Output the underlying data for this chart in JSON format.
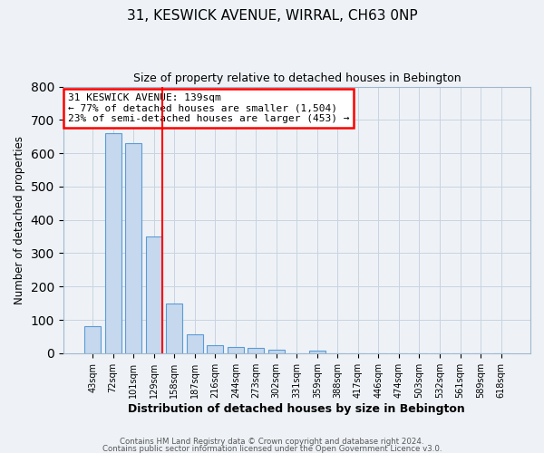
{
  "title": "31, KESWICK AVENUE, WIRRAL, CH63 0NP",
  "subtitle": "Size of property relative to detached houses in Bebington",
  "xlabel": "Distribution of detached houses by size in Bebington",
  "ylabel": "Number of detached properties",
  "bar_labels": [
    "43sqm",
    "72sqm",
    "101sqm",
    "129sqm",
    "158sqm",
    "187sqm",
    "216sqm",
    "244sqm",
    "273sqm",
    "302sqm",
    "331sqm",
    "359sqm",
    "388sqm",
    "417sqm",
    "446sqm",
    "474sqm",
    "503sqm",
    "532sqm",
    "561sqm",
    "589sqm",
    "618sqm"
  ],
  "bar_values": [
    82,
    660,
    630,
    350,
    148,
    58,
    25,
    18,
    15,
    10,
    0,
    8,
    0,
    0,
    0,
    0,
    0,
    0,
    0,
    0,
    0
  ],
  "bar_color": "#c5d8ed",
  "bar_edge_color": "#5b9bd5",
  "ylim": [
    0,
    800
  ],
  "yticks": [
    0,
    100,
    200,
    300,
    400,
    500,
    600,
    700,
    800
  ],
  "red_line_label": "31 KESWICK AVENUE: 139sqm",
  "annotation_line1": "← 77% of detached houses are smaller (1,504)",
  "annotation_line2": "23% of semi-detached houses are larger (453) →",
  "footer_line1": "Contains HM Land Registry data © Crown copyright and database right 2024.",
  "footer_line2": "Contains public sector information licensed under the Open Government Licence v3.0.",
  "bg_color": "#eef2f7",
  "grid_color": "#c8d4e0",
  "red_line_x": 3.4
}
